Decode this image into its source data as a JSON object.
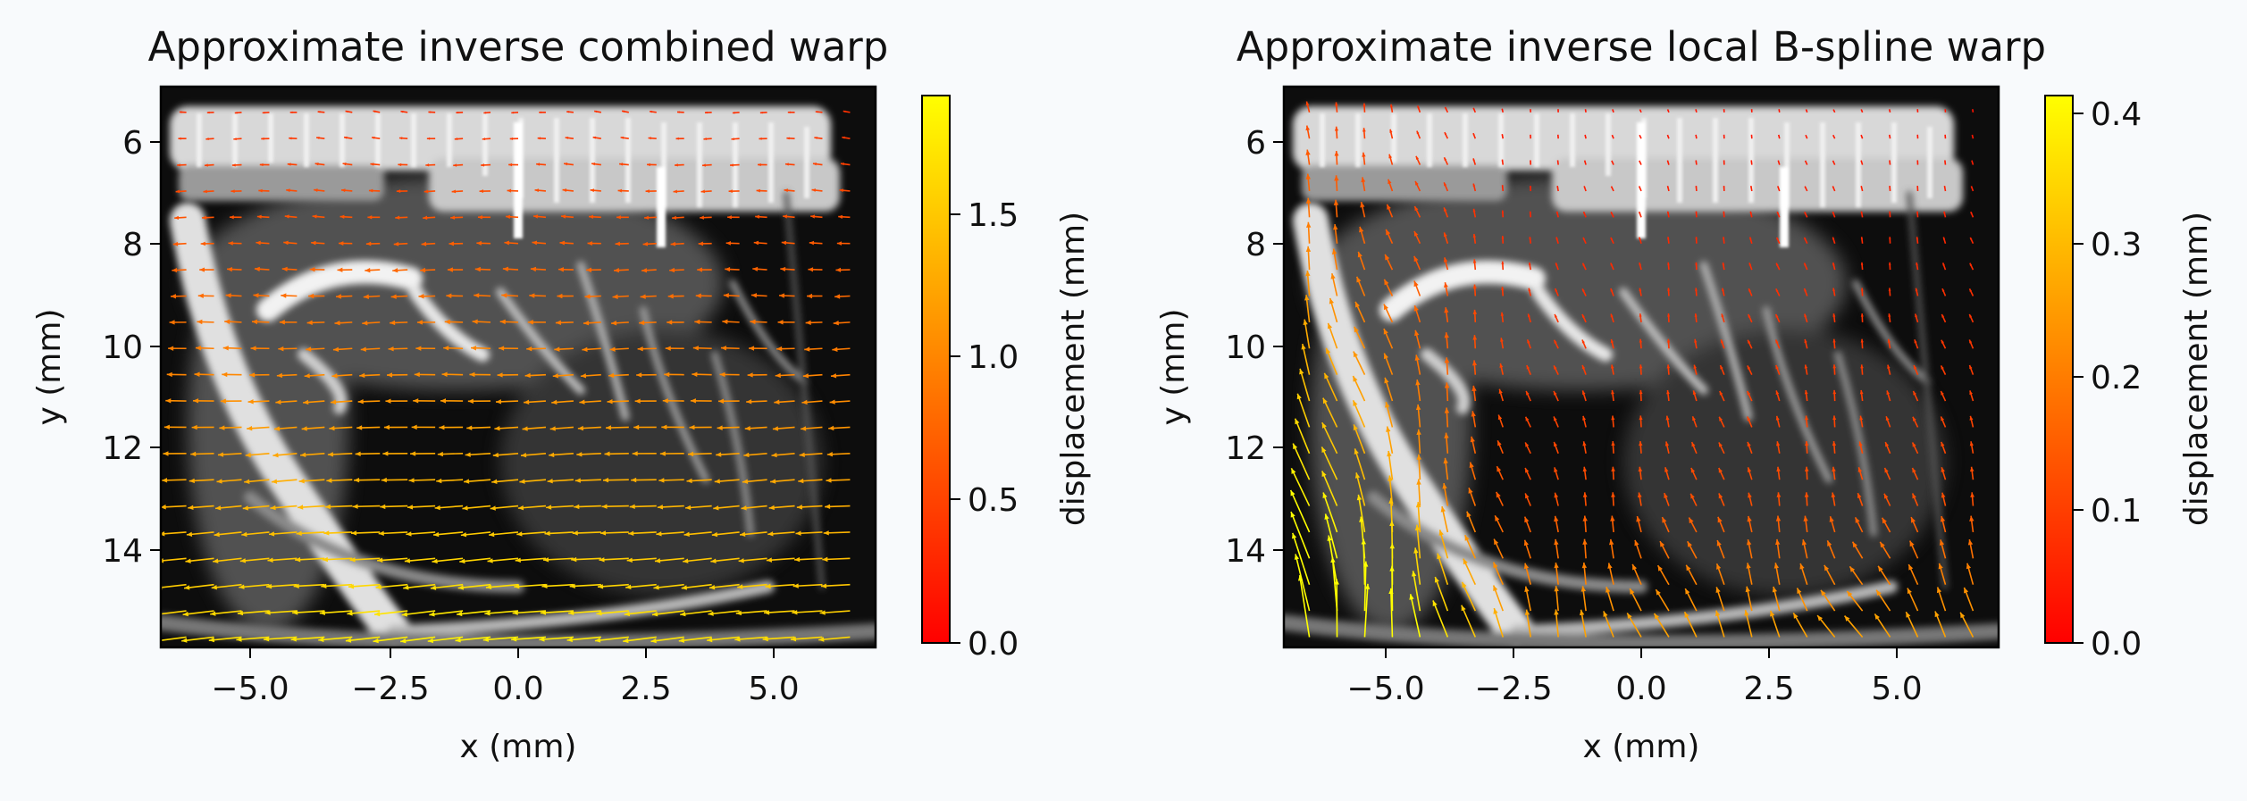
{
  "chart_data": [
    {
      "type": "quiver",
      "title": "Approximate inverse combined warp",
      "xlabel": "x (mm)",
      "ylabel": "y (mm)",
      "xlim": [
        -7.0,
        7.0
      ],
      "ylim": [
        15.9,
        5.0
      ],
      "y_inverted": true,
      "xticks": [
        -5.0,
        -2.5,
        0.0,
        2.5,
        5.0
      ],
      "xtick_labels": [
        "−5.0",
        "−2.5",
        "0.0",
        "2.5",
        "5.0"
      ],
      "yticks": [
        6,
        8,
        10,
        12,
        14
      ],
      "ytick_labels": [
        "6",
        "8",
        "10",
        "12",
        "14"
      ],
      "background": "grayscale ultrasound image",
      "colorbar": {
        "label": "displacement (mm)",
        "range": [
          0.0,
          1.9
        ],
        "ticks": [
          0.0,
          0.5,
          1.0,
          1.5
        ],
        "tick_labels": [
          "0.0",
          "0.5",
          "1.0",
          "1.5"
        ],
        "colormap": "autumn",
        "colors": [
          "#ff0000",
          "#ffff00"
        ]
      },
      "vector_field": {
        "x_range": [
          -6.5,
          6.5
        ],
        "y_range": [
          5.5,
          15.7
        ],
        "nx": 25,
        "ny": 21,
        "description": "mostly leftward displacement, increasing toward bottom",
        "magnitude_range": [
          0.2,
          1.9
        ]
      }
    },
    {
      "type": "quiver",
      "title": "Approximate inverse local B-spline warp",
      "xlabel": "x (mm)",
      "ylabel": "y (mm)",
      "xlim": [
        -7.0,
        7.0
      ],
      "ylim": [
        15.9,
        5.0
      ],
      "y_inverted": true,
      "xticks": [
        -5.0,
        -2.5,
        0.0,
        2.5,
        5.0
      ],
      "xtick_labels": [
        "−5.0",
        "−2.5",
        "0.0",
        "2.5",
        "5.0"
      ],
      "yticks": [
        6,
        8,
        10,
        12,
        14
      ],
      "ytick_labels": [
        "6",
        "8",
        "10",
        "12",
        "14"
      ],
      "background": "grayscale ultrasound image",
      "colorbar": {
        "label": "displacement (mm)",
        "range": [
          0.0,
          0.41
        ],
        "ticks": [
          0.0,
          0.1,
          0.2,
          0.3,
          0.4
        ],
        "tick_labels": [
          "0.0",
          "0.1",
          "0.2",
          "0.3",
          "0.4"
        ],
        "colormap": "autumn",
        "colors": [
          "#ff0000",
          "#ffff00"
        ]
      },
      "vector_field": {
        "x_range": [
          -6.5,
          6.5
        ],
        "y_range": [
          5.5,
          15.7
        ],
        "nx": 25,
        "ny": 21,
        "description": "mostly upward displacement, largest at left edge and bottom",
        "magnitude_range": [
          0.02,
          0.41
        ]
      }
    }
  ]
}
